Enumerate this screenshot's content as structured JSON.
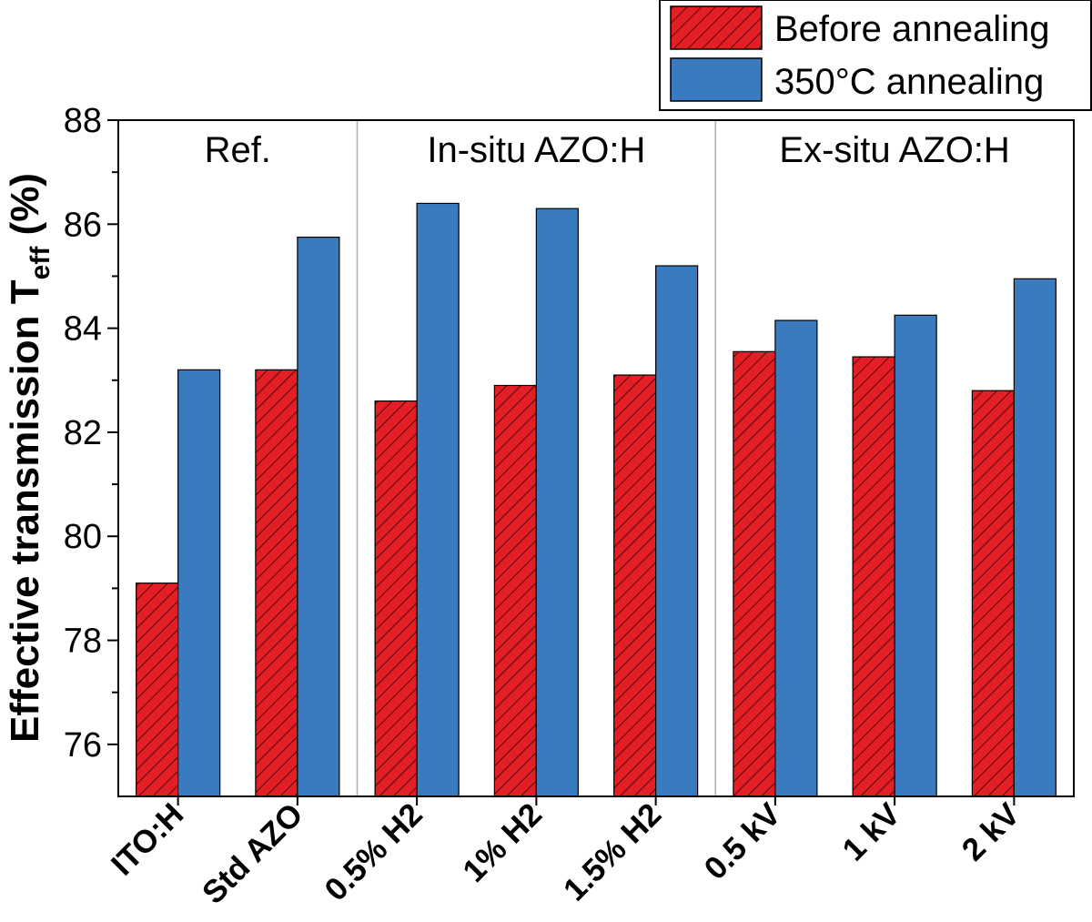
{
  "chart_data": {
    "type": "bar",
    "ylabel_main": "Effective transmission T",
    "ylabel_sub": "eff",
    "ylabel_unit": " (%)",
    "ylim": [
      75,
      88
    ],
    "yticks": [
      76,
      78,
      80,
      82,
      84,
      86,
      88
    ],
    "categories": [
      "ITO:H",
      "Std AZO",
      "0.5% H2",
      "1% H2",
      "1.5% H2",
      "0.5 kV",
      "1 kV",
      "2 kV"
    ],
    "series": [
      {
        "name": "Before annealing",
        "color": "#e31e24",
        "pattern": "hatch",
        "values": [
          79.1,
          83.2,
          82.6,
          82.9,
          83.1,
          83.55,
          83.45,
          82.8
        ]
      },
      {
        "name": "350°C annealing",
        "color": "#3a7bbf",
        "pattern": "solid",
        "values": [
          83.2,
          85.75,
          86.4,
          86.3,
          85.2,
          84.15,
          84.25,
          84.95
        ]
      }
    ],
    "groups": [
      {
        "label": "Ref.",
        "start": 0,
        "end": 1
      },
      {
        "label": "In-situ AZO:H",
        "start": 2,
        "end": 4
      },
      {
        "label": "Ex-situ AZO:H",
        "start": 5,
        "end": 7
      }
    ],
    "legend_position": "top-right, outside plot"
  }
}
